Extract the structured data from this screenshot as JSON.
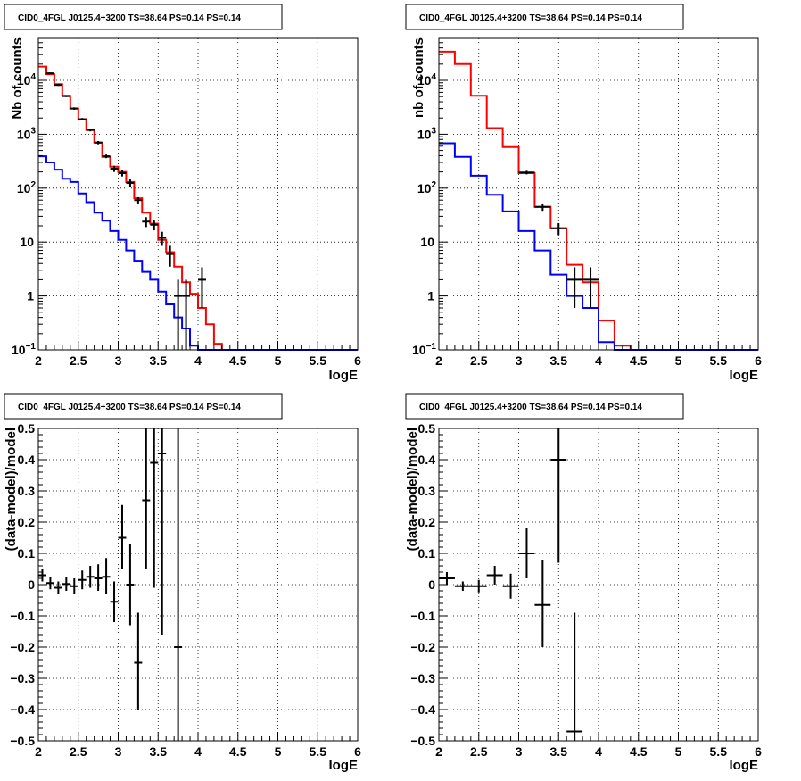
{
  "chart_data": [
    {
      "type": "line",
      "title": "CID0_4FGL J0125.4+3200 TS=38.64 PS=0.14 PS=0.14",
      "xlabel": "logE",
      "ylabel": "Nb of counts",
      "xlim": [
        2,
        6
      ],
      "ylim": [
        0.1,
        60000
      ],
      "yscale": "log",
      "grid": true,
      "x_ticks": [
        "2",
        "2.5",
        "3",
        "3.5",
        "4",
        "4.5",
        "5",
        "5.5",
        "6"
      ],
      "y_ticks": [
        {
          "value": 0.1,
          "label": "10",
          "sup": "−1"
        },
        {
          "value": 1,
          "label": "1",
          "sup": ""
        },
        {
          "value": 10,
          "label": "10",
          "sup": ""
        },
        {
          "value": 100,
          "label": "10",
          "sup": "2"
        },
        {
          "value": 1000,
          "label": "10",
          "sup": "3"
        },
        {
          "value": 10000,
          "label": "10",
          "sup": "4"
        }
      ],
      "bin_edges": [
        2.0,
        2.1,
        2.2,
        2.3,
        2.4,
        2.5,
        2.6,
        2.7,
        2.8,
        2.9,
        3.0,
        3.1,
        3.2,
        3.3,
        3.4,
        3.5,
        3.6,
        3.7,
        3.8,
        3.9,
        4.0,
        4.1,
        4.2,
        4.3,
        4.4,
        4.5,
        4.6,
        4.7,
        4.8,
        4.9,
        5.0,
        5.1,
        5.2,
        5.3,
        5.4,
        5.5,
        5.6,
        5.7,
        5.8,
        5.9,
        6.0
      ],
      "series": [
        {
          "color": "#ff0000",
          "style": "step",
          "values": [
            18000,
            13000,
            8500,
            5200,
            3000,
            1900,
            1200,
            700,
            380,
            250,
            200,
            130,
            65,
            35,
            22,
            11,
            6.5,
            3.5,
            1.8,
            1.1,
            0.6,
            0.3,
            0.13,
            0.08,
            0.08,
            0.08,
            0.08,
            0.08,
            0.08,
            0.08,
            0.08,
            0.08,
            0.08,
            0.08,
            0.08,
            0.08,
            0.08,
            0.08,
            0.08,
            0.08
          ]
        },
        {
          "color": "#0000ff",
          "style": "step",
          "values": [
            390,
            300,
            220,
            150,
            130,
            80,
            55,
            35,
            25,
            16,
            11,
            7,
            4.5,
            2.8,
            2,
            1.2,
            0.7,
            0.4,
            0.25,
            0.12,
            0.1,
            0.1,
            0.1,
            0.1,
            0.1,
            0.1,
            0.1,
            0.1,
            0.1,
            0.1,
            0.1,
            0.1,
            0.1,
            0.1,
            0.1,
            0.1,
            0.1,
            0.1,
            0.1,
            0.1
          ]
        },
        {
          "color": "#000000",
          "style": "errorbar",
          "points": [
            {
              "x": 2.15,
              "y": 13500,
              "lo": 13000,
              "hi": 14000
            },
            {
              "x": 2.25,
              "y": 8200,
              "lo": 7900,
              "hi": 8500
            },
            {
              "x": 2.35,
              "y": 5100,
              "lo": 4900,
              "hi": 5300
            },
            {
              "x": 2.45,
              "y": 3000,
              "lo": 2850,
              "hi": 3150
            },
            {
              "x": 2.55,
              "y": 1900,
              "lo": 1800,
              "hi": 2000
            },
            {
              "x": 2.65,
              "y": 1200,
              "lo": 1130,
              "hi": 1270
            },
            {
              "x": 2.75,
              "y": 700,
              "lo": 650,
              "hi": 750
            },
            {
              "x": 2.85,
              "y": 390,
              "lo": 360,
              "hi": 420
            },
            {
              "x": 2.95,
              "y": 230,
              "lo": 200,
              "hi": 260
            },
            {
              "x": 3.05,
              "y": 190,
              "lo": 165,
              "hi": 215
            },
            {
              "x": 3.15,
              "y": 125,
              "lo": 105,
              "hi": 145
            },
            {
              "x": 3.25,
              "y": 60,
              "lo": 52,
              "hi": 68
            },
            {
              "x": 3.35,
              "y": 24,
              "lo": 19,
              "hi": 29
            },
            {
              "x": 3.45,
              "y": 21,
              "lo": 16.5,
              "hi": 25.5
            },
            {
              "x": 3.55,
              "y": 12,
              "lo": 8.5,
              "hi": 15.5
            },
            {
              "x": 3.65,
              "y": 6,
              "lo": 3.5,
              "hi": 8.5
            },
            {
              "x": 3.75,
              "y": 1,
              "lo": 0.1,
              "hi": 2
            },
            {
              "x": 3.85,
              "y": 1,
              "lo": 0.1,
              "hi": 2
            },
            {
              "x": 4.05,
              "y": 2,
              "lo": 0.6,
              "hi": 3.4
            }
          ]
        }
      ]
    },
    {
      "type": "line",
      "title": "CID0_4FGL J0125.4+3200 TS=38.64 PS=0.14 PS=0.14",
      "xlabel": "logE",
      "ylabel": "nb of counts",
      "xlim": [
        2,
        6
      ],
      "ylim": [
        0.1,
        60000
      ],
      "yscale": "log",
      "grid": true,
      "x_ticks": [
        "2",
        "2.5",
        "3",
        "3.5",
        "4",
        "4.5",
        "5",
        "5.5",
        "6"
      ],
      "y_ticks": [
        {
          "value": 0.1,
          "label": "10",
          "sup": "−1"
        },
        {
          "value": 1,
          "label": "1",
          "sup": ""
        },
        {
          "value": 10,
          "label": "10",
          "sup": ""
        },
        {
          "value": 100,
          "label": "10",
          "sup": "2"
        },
        {
          "value": 1000,
          "label": "10",
          "sup": "3"
        },
        {
          "value": 10000,
          "label": "10",
          "sup": "4"
        }
      ],
      "bin_edges": [
        2.0,
        2.2,
        2.4,
        2.6,
        2.8,
        3.0,
        3.2,
        3.4,
        3.6,
        3.8,
        4.0,
        4.2,
        4.4,
        4.6,
        4.8,
        5.0,
        5.2,
        5.4,
        5.6,
        5.8,
        6.0
      ],
      "series": [
        {
          "color": "#ff0000",
          "style": "step",
          "values": [
            34000,
            20000,
            5200,
            1300,
            580,
            190,
            45,
            18,
            3.8,
            1.8,
            0.35,
            0.12,
            0.08,
            0.08,
            0.08,
            0.08,
            0.08,
            0.08,
            0.08,
            0.08
          ]
        },
        {
          "color": "#0000ff",
          "style": "step",
          "values": [
            680,
            380,
            170,
            75,
            37,
            16,
            7,
            2.5,
            1,
            0.6,
            0.14,
            0.1,
            0.1,
            0.1,
            0.1,
            0.1,
            0.1,
            0.1,
            0.1,
            0.1
          ]
        },
        {
          "color": "#000000",
          "style": "errorbar",
          "points": [
            {
              "x": 3.1,
              "y": 195,
              "lo": 180,
              "hi": 210
            },
            {
              "x": 3.3,
              "y": 45,
              "lo": 38,
              "hi": 52
            },
            {
              "x": 3.5,
              "y": 18,
              "lo": 13.5,
              "hi": 22.5
            },
            {
              "x": 3.7,
              "y": 2,
              "lo": 0.6,
              "hi": 3.4
            },
            {
              "x": 3.9,
              "y": 2,
              "lo": 0.6,
              "hi": 3.4
            }
          ]
        }
      ]
    },
    {
      "type": "scatter",
      "title": "CID0_4FGL J0125.4+3200 TS=38.64 PS=0.14 PS=0.14",
      "xlabel": "logE",
      "ylabel": "(data-model)/model",
      "xlim": [
        2,
        6
      ],
      "ylim": [
        -0.5,
        0.5
      ],
      "grid": true,
      "x_ticks": [
        "2",
        "2.5",
        "3",
        "3.5",
        "4",
        "4.5",
        "5",
        "5.5",
        "6"
      ],
      "y_ticks": [
        "0.5",
        "0.4",
        "0.3",
        "0.2",
        "0.1",
        "0",
        "−0.1",
        "−0.2",
        "−0.3",
        "−0.4",
        "−0.5"
      ],
      "x_half_width": 0.05,
      "points": [
        {
          "x": 2.05,
          "y": 0.03,
          "lo": 0.01,
          "hi": 0.05
        },
        {
          "x": 2.15,
          "y": 0.005,
          "lo": -0.015,
          "hi": 0.025
        },
        {
          "x": 2.25,
          "y": -0.01,
          "lo": -0.03,
          "hi": 0.01
        },
        {
          "x": 2.35,
          "y": 0.002,
          "lo": -0.02,
          "hi": 0.024
        },
        {
          "x": 2.45,
          "y": -0.005,
          "lo": -0.03,
          "hi": 0.02
        },
        {
          "x": 2.55,
          "y": 0.015,
          "lo": -0.015,
          "hi": 0.045
        },
        {
          "x": 2.65,
          "y": 0.025,
          "lo": -0.01,
          "hi": 0.06
        },
        {
          "x": 2.75,
          "y": 0.02,
          "lo": -0.02,
          "hi": 0.065
        },
        {
          "x": 2.85,
          "y": 0.025,
          "lo": -0.03,
          "hi": 0.085
        },
        {
          "x": 2.95,
          "y": -0.055,
          "lo": -0.12,
          "hi": 0.01
        },
        {
          "x": 3.05,
          "y": 0.15,
          "lo": 0.05,
          "hi": 0.255
        },
        {
          "x": 3.15,
          "y": 0.0,
          "lo": -0.13,
          "hi": 0.13
        },
        {
          "x": 3.25,
          "y": -0.25,
          "lo": -0.4,
          "hi": -0.09
        },
        {
          "x": 3.35,
          "y": 0.27,
          "lo": 0.05,
          "hi": 0.5
        },
        {
          "x": 3.45,
          "y": 0.39,
          "lo": -0.01,
          "hi": 0.5
        },
        {
          "x": 3.55,
          "y": 0.42,
          "lo": -0.16,
          "hi": 0.5
        },
        {
          "x": 3.75,
          "y": -0.2,
          "lo": -0.5,
          "hi": 0.5
        }
      ]
    },
    {
      "type": "scatter",
      "title": "CID0_4FGL J0125.4+3200 TS=38.64 PS=0.14 PS=0.14",
      "xlabel": "logE",
      "ylabel": "(data-model)/model",
      "xlim": [
        2,
        6
      ],
      "ylim": [
        -0.5,
        0.5
      ],
      "grid": true,
      "x_ticks": [
        "2",
        "2.5",
        "3",
        "3.5",
        "4",
        "4.5",
        "5",
        "5.5",
        "6"
      ],
      "y_ticks": [
        "0.5",
        "0.4",
        "0.3",
        "0.2",
        "0.1",
        "0",
        "−0.1",
        "−0.2",
        "−0.3",
        "−0.4",
        "−0.5"
      ],
      "x_half_width": 0.1,
      "points": [
        {
          "x": 2.1,
          "y": 0.02,
          "lo": 0.0,
          "hi": 0.04
        },
        {
          "x": 2.3,
          "y": -0.005,
          "lo": -0.02,
          "hi": 0.01
        },
        {
          "x": 2.5,
          "y": -0.005,
          "lo": -0.025,
          "hi": 0.015
        },
        {
          "x": 2.7,
          "y": 0.03,
          "lo": 0.0,
          "hi": 0.06
        },
        {
          "x": 2.9,
          "y": -0.005,
          "lo": -0.045,
          "hi": 0.035
        },
        {
          "x": 3.1,
          "y": 0.1,
          "lo": 0.02,
          "hi": 0.18
        },
        {
          "x": 3.3,
          "y": -0.065,
          "lo": -0.2,
          "hi": 0.08
        },
        {
          "x": 3.5,
          "y": 0.4,
          "lo": 0.07,
          "hi": 0.5
        },
        {
          "x": 3.7,
          "y": -0.47,
          "lo": -0.5,
          "hi": -0.09
        }
      ]
    }
  ]
}
